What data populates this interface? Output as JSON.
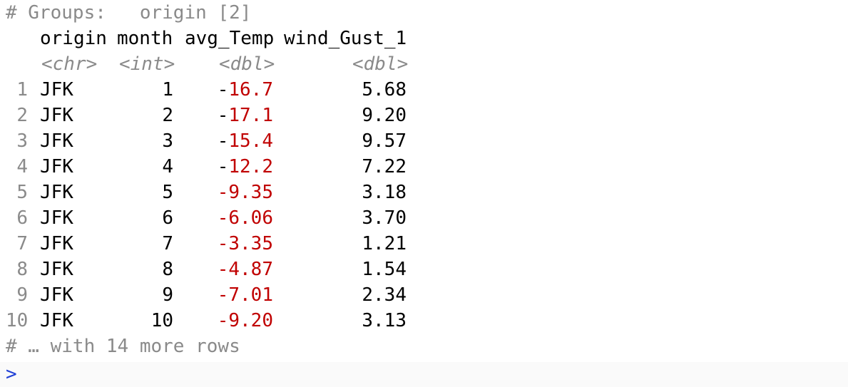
{
  "header": {
    "groups_comment": "# Groups:   origin [2]"
  },
  "columns": [
    {
      "name": "origin",
      "type": "<chr>"
    },
    {
      "name": "month",
      "type": "<int>"
    },
    {
      "name": "avg_Temp",
      "type": "<dbl>"
    },
    {
      "name": "wind_Gust_1",
      "type": "<dbl>"
    }
  ],
  "rows": [
    {
      "index": "1",
      "origin": "JFK",
      "month": "1",
      "avg_temp_sign": "-",
      "avg_temp_value": "16.7",
      "wind_gust": "5.68"
    },
    {
      "index": "2",
      "origin": "JFK",
      "month": "2",
      "avg_temp_sign": "-",
      "avg_temp_value": "17.1",
      "wind_gust": "9.20"
    },
    {
      "index": "3",
      "origin": "JFK",
      "month": "3",
      "avg_temp_sign": "-",
      "avg_temp_value": "15.4",
      "wind_gust": "9.57"
    },
    {
      "index": "4",
      "origin": "JFK",
      "month": "4",
      "avg_temp_sign": "-",
      "avg_temp_value": "12.2",
      "wind_gust": "7.22"
    },
    {
      "index": "5",
      "origin": "JFK",
      "month": "5",
      "avg_temp_sign": "",
      "avg_temp_value": "-9.35",
      "wind_gust": "3.18"
    },
    {
      "index": "6",
      "origin": "JFK",
      "month": "6",
      "avg_temp_sign": "",
      "avg_temp_value": "-6.06",
      "wind_gust": "3.70"
    },
    {
      "index": "7",
      "origin": "JFK",
      "month": "7",
      "avg_temp_sign": "",
      "avg_temp_value": "-3.35",
      "wind_gust": "1.21"
    },
    {
      "index": "8",
      "origin": "JFK",
      "month": "8",
      "avg_temp_sign": "",
      "avg_temp_value": "-4.87",
      "wind_gust": "1.54"
    },
    {
      "index": "9",
      "origin": "JFK",
      "month": "9",
      "avg_temp_sign": "",
      "avg_temp_value": "-7.01",
      "wind_gust": "2.34"
    },
    {
      "index": "10",
      "origin": "JFK",
      "month": "10",
      "avg_temp_sign": "",
      "avg_temp_value": "-9.20",
      "wind_gust": "3.13"
    }
  ],
  "footer": {
    "more_rows_comment": "# … with 14 more rows"
  },
  "prompt": {
    "symbol": ">"
  },
  "colors": {
    "comment": "#8a8a8a",
    "negative": "#c00000",
    "prompt": "#1f3fd6"
  }
}
